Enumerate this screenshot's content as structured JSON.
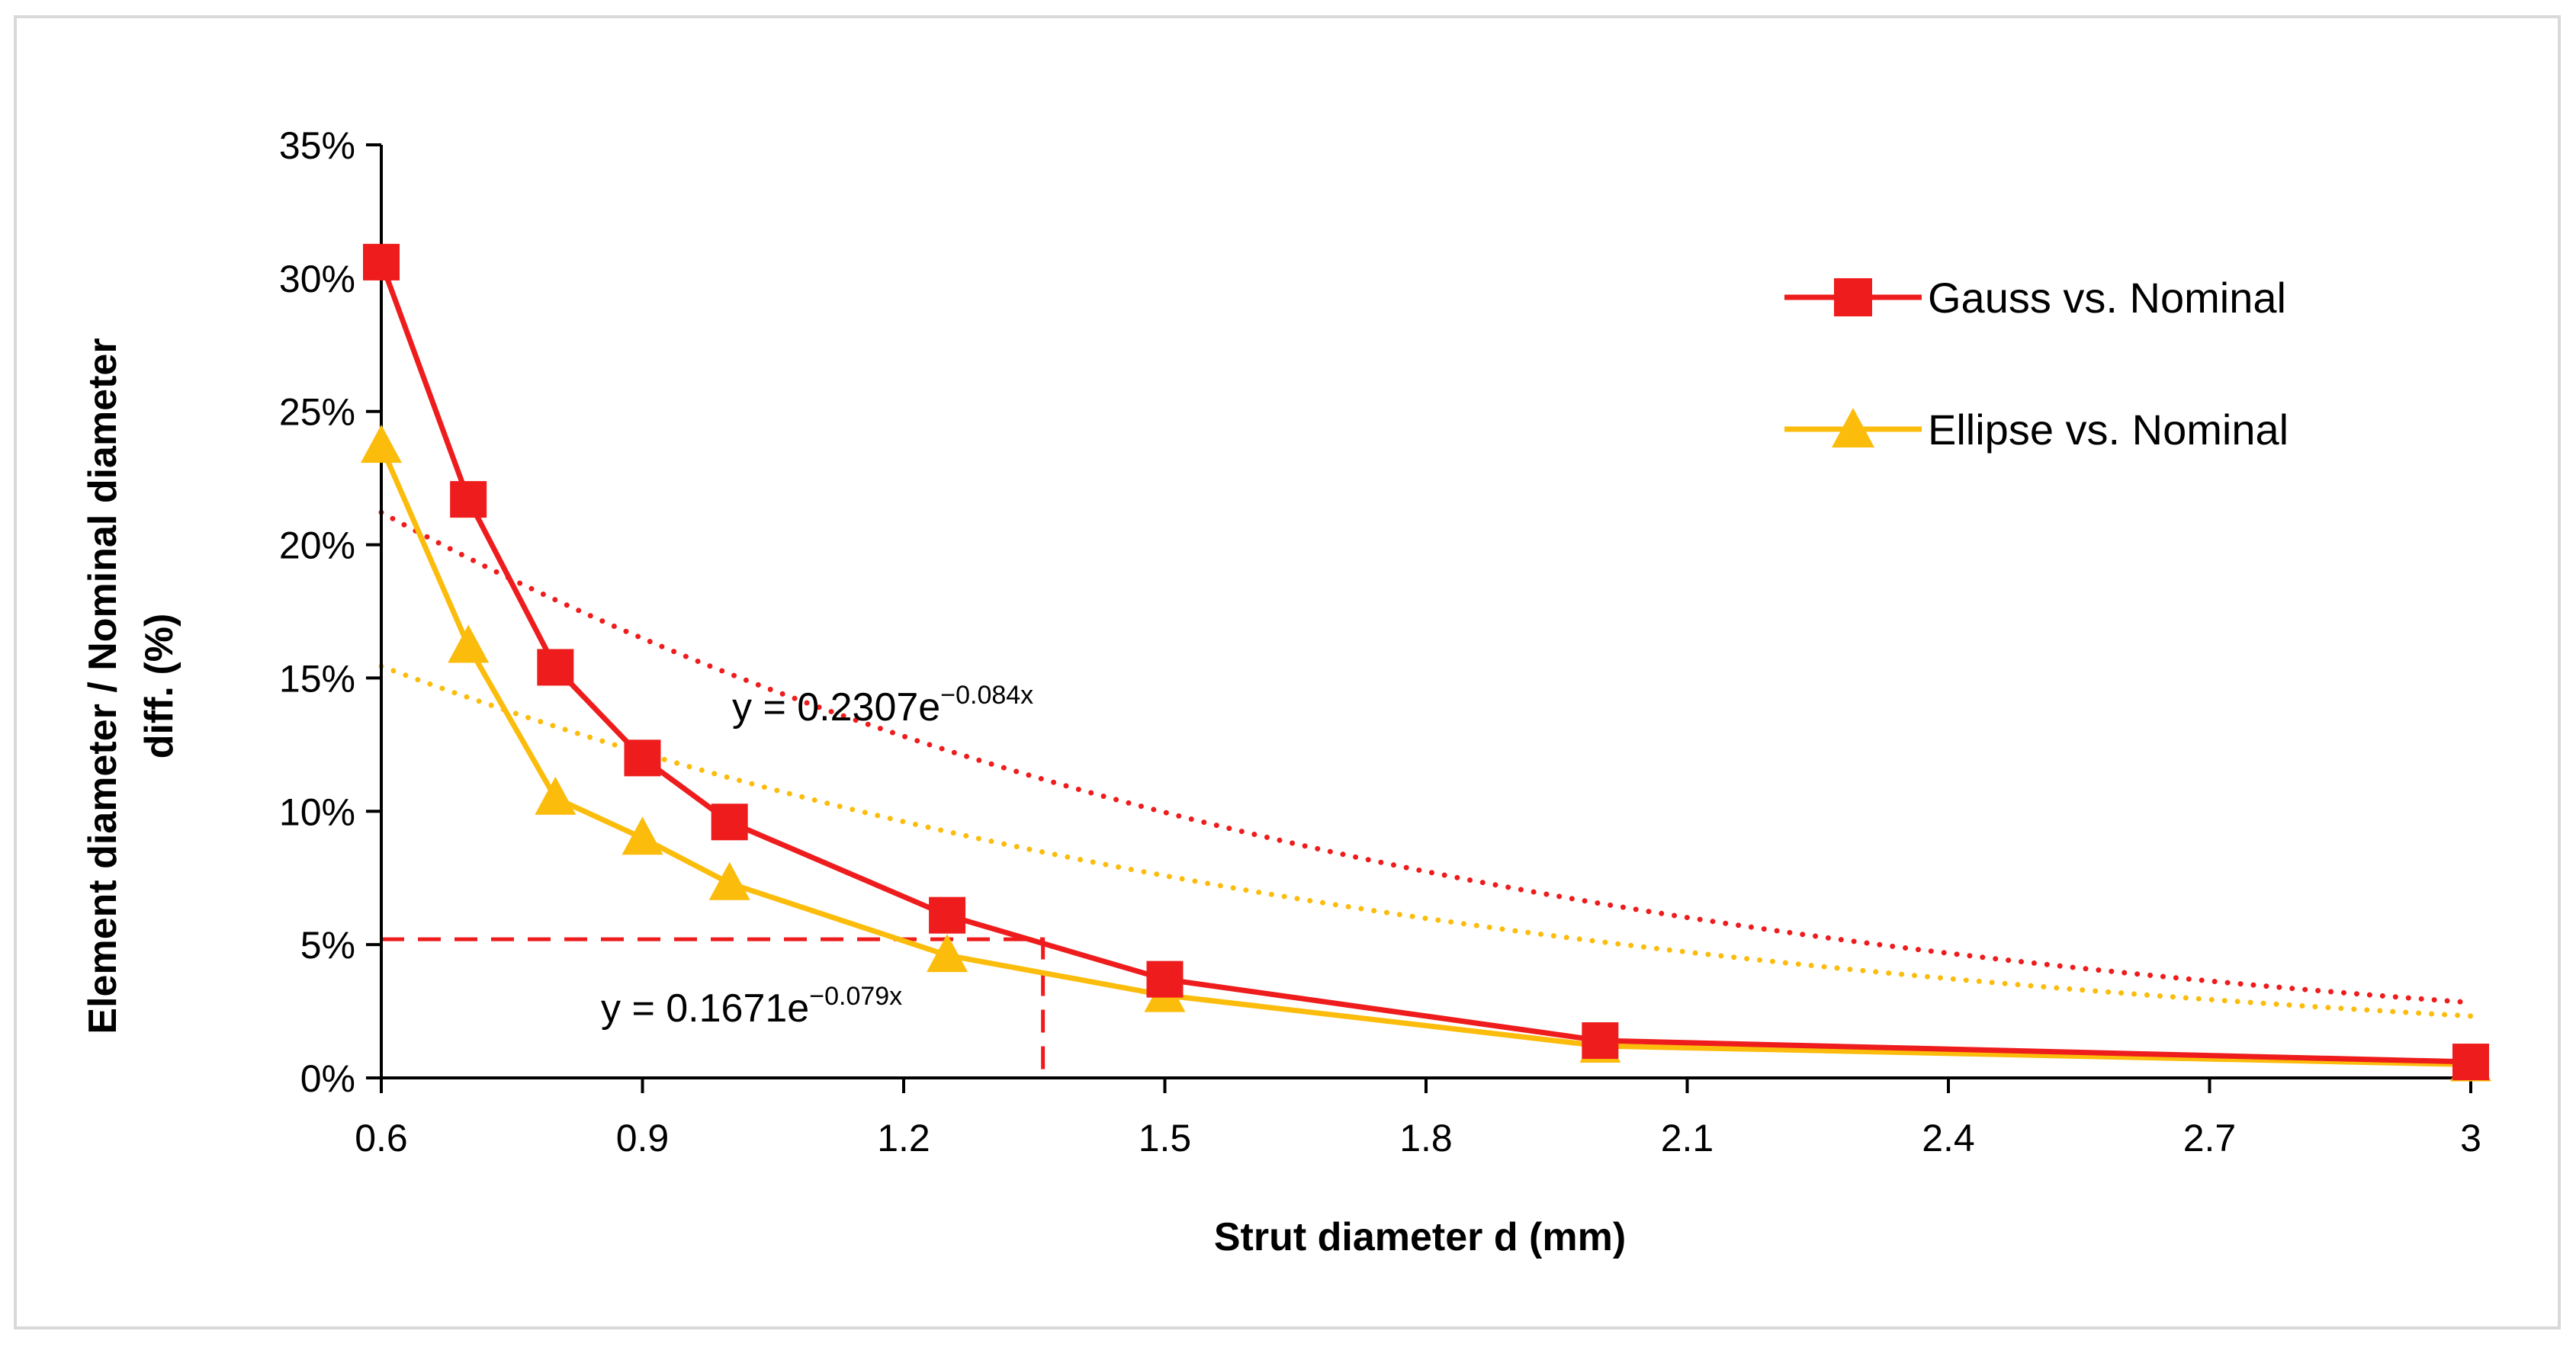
{
  "chart_data": {
    "type": "line",
    "title": "",
    "xlabel": "Strut diameter d (mm)",
    "ylabel_line1": "Element diameter / Nominal diameter",
    "ylabel_line2": "diff. (%)",
    "xlim": [
      0.6,
      3
    ],
    "ylim": [
      0,
      0.35
    ],
    "x_ticks": [
      0.6,
      0.9,
      1.2,
      1.5,
      1.8,
      2.1,
      2.4,
      2.7,
      3
    ],
    "x_tick_labels": [
      "0.6",
      "0.9",
      "1.2",
      "1.5",
      "1.8",
      "2.1",
      "2.4",
      "2.7",
      "3"
    ],
    "y_ticks": [
      0,
      0.05,
      0.1,
      0.15,
      0.2,
      0.25,
      0.3,
      0.35
    ],
    "y_tick_labels": [
      "0%",
      "5%",
      "10%",
      "15%",
      "20%",
      "25%",
      "30%",
      "35%"
    ],
    "grid": false,
    "legend_position": "top-right",
    "series": [
      {
        "name": "Gauss vs. Nominal",
        "color": "#ee1c1c",
        "marker": "square",
        "x": [
          0.6,
          0.7,
          0.8,
          0.9,
          1.0,
          1.25,
          1.5,
          2.0,
          3.0
        ],
        "values": [
          0.306,
          0.217,
          0.154,
          0.12,
          0.096,
          0.061,
          0.037,
          0.014,
          0.006
        ]
      },
      {
        "name": "Ellipse vs. Nominal",
        "color": "#fbbc0c",
        "marker": "triangle",
        "x": [
          0.6,
          0.7,
          0.8,
          0.9,
          1.0,
          1.25,
          1.5,
          2.0,
          3.0
        ],
        "values": [
          0.237,
          0.162,
          0.105,
          0.09,
          0.073,
          0.046,
          0.031,
          0.012,
          0.005
        ]
      }
    ],
    "trendlines": [
      {
        "series": "Gauss vs. Nominal",
        "type": "exponential",
        "a": 0.2307,
        "b": -0.084,
        "index_step": 0.1,
        "label_prefix": "y = 0.2307e",
        "label_exponent": "−0.084x"
      },
      {
        "series": "Ellipse vs. Nominal",
        "type": "exponential",
        "a": 0.1671,
        "b": -0.079,
        "index_step": 0.1,
        "label_prefix": "y = 0.1671e",
        "label_exponent": "−0.079x"
      }
    ],
    "annotation": {
      "type": "dashed-crosshair",
      "color": "#ee1c1c",
      "x": 1.36,
      "y": 0.052
    }
  }
}
